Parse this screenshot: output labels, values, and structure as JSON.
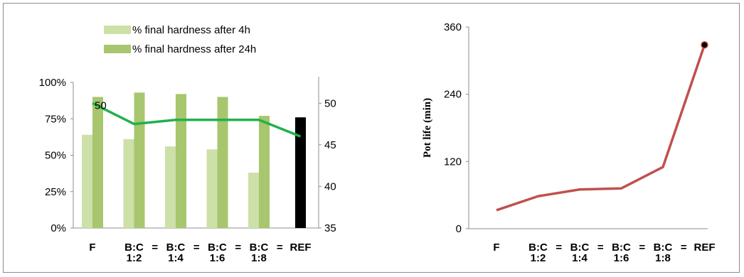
{
  "chart_data": [
    {
      "type": "bar",
      "categories": [
        [
          "F"
        ],
        [
          "B:C",
          "1:2"
        ],
        [
          "B:C",
          "1:4"
        ],
        [
          "B:C",
          "1:6"
        ],
        [
          "B:C",
          "1:8"
        ],
        [
          "REF"
        ]
      ],
      "separators": [
        "",
        "=",
        "=",
        "=",
        "="
      ],
      "series": [
        {
          "name": "% final hardness after 4h",
          "axis": "left",
          "type": "bar",
          "color": "#cde0a8",
          "values": [
            64,
            61,
            56,
            54,
            38,
            null
          ]
        },
        {
          "name": "% final hardness after 24h",
          "axis": "left",
          "type": "bar",
          "color": "#a7c66e",
          "values": [
            90,
            93,
            92,
            90,
            77,
            null
          ]
        },
        {
          "name": "",
          "axis": "left",
          "type": "bar",
          "color": "#000000",
          "values": [
            null,
            null,
            null,
            null,
            null,
            76
          ]
        },
        {
          "name": "",
          "axis": "right",
          "type": "line",
          "color": "#22b14c",
          "values": [
            50,
            47.5,
            48,
            48,
            48,
            46
          ]
        }
      ],
      "annotations": [
        {
          "category_index": 0,
          "text": "50"
        }
      ],
      "ylim_left": [
        0,
        100
      ],
      "yticks_left": [
        "0%",
        "25%",
        "50%",
        "75%",
        "100%"
      ],
      "ylim_right": [
        35,
        52.5
      ],
      "yticks_right": [
        "35",
        "40",
        "45",
        "50"
      ],
      "legend_position": "top-center",
      "grid": false
    },
    {
      "type": "line",
      "categories": [
        [
          "F"
        ],
        [
          "B:C",
          "1:2"
        ],
        [
          "B:C",
          "1:4"
        ],
        [
          "B:C",
          "1:6"
        ],
        [
          "B:C",
          "1:8"
        ],
        [
          "REF"
        ]
      ],
      "separators": [
        "",
        "=",
        "=",
        "=",
        "="
      ],
      "series": [
        {
          "name": "",
          "color": "#c0504d",
          "values": [
            33,
            58,
            70,
            72,
            110,
            328
          ]
        }
      ],
      "ylabel": "Pot life (min)",
      "ylim": [
        0,
        360
      ],
      "yticks": [
        "0",
        "120",
        "240",
        "360"
      ],
      "marker_color": "#000000",
      "grid": false
    }
  ]
}
